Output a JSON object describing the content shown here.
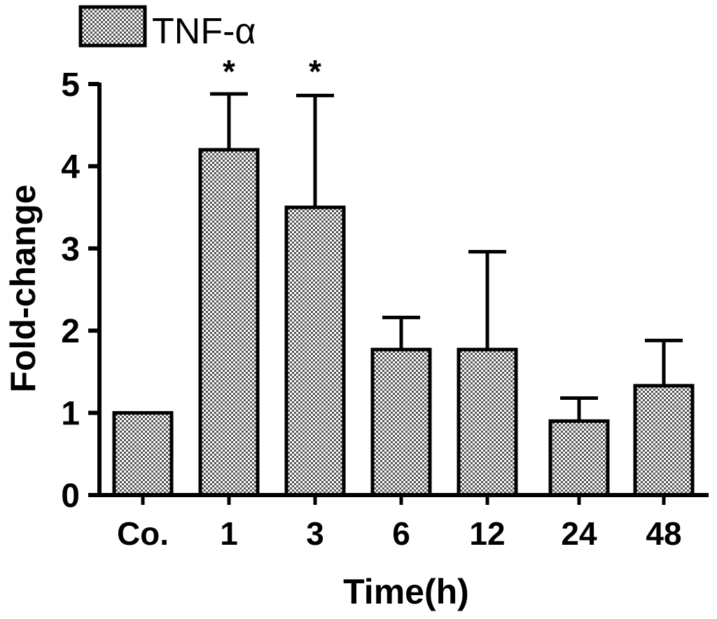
{
  "chart_data": {
    "type": "bar",
    "categories": [
      "Co.",
      "1",
      "3",
      "6",
      "12",
      "24",
      "48"
    ],
    "series": [
      {
        "name": "TNF-α",
        "values": [
          1.0,
          4.2,
          3.5,
          1.77,
          1.77,
          0.9,
          1.33
        ],
        "error_upper": [
          1.0,
          4.88,
          4.86,
          2.16,
          2.96,
          1.18,
          1.88
        ]
      }
    ],
    "significance": [
      "",
      "*",
      "*",
      "",
      "",
      "",
      ""
    ],
    "xlabel": "Time(h)",
    "ylabel": "Fold-change",
    "ylim": [
      0,
      5
    ],
    "yticks": [
      "0",
      "1",
      "2",
      "3",
      "4",
      "5"
    ],
    "grid": false,
    "legend_position": "top-left",
    "colors": {
      "bar_fill_light": "#ffffff",
      "bar_fill_dark": "#555555",
      "stroke": "#000000"
    }
  }
}
